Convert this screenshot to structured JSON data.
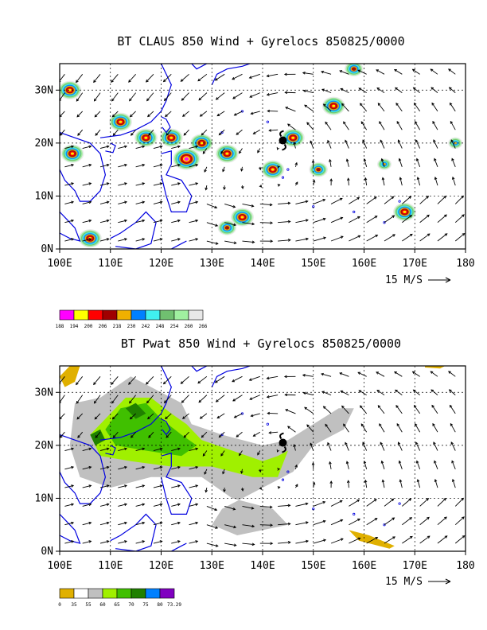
{
  "chart_data": [
    {
      "type": "heatmap",
      "title": "BT CLAUS 850 Wind + Gyrelocs 850825/0000",
      "x_ticks": [
        "100E",
        "110E",
        "120E",
        "130E",
        "140E",
        "150E",
        "160E",
        "170E",
        "180"
      ],
      "y_ticks": [
        "0N",
        "10N",
        "20N",
        "30N"
      ],
      "xlim": [
        100,
        180
      ],
      "ylim": [
        0,
        35
      ],
      "grid": true,
      "vector_reference": "15 M/S",
      "colorbar_labels": [
        "188",
        "194",
        "200",
        "206",
        "218",
        "230",
        "242",
        "248",
        "254",
        "260",
        "266"
      ],
      "colorbar_colors": [
        "#ff00ff",
        "#ffff00",
        "#ff0000",
        "#a00000",
        "#f0b000",
        "#0080ff",
        "#40f0f0",
        "#70c070",
        "#a0f0a0",
        "#e8e8e8"
      ],
      "features": [
        {
          "lon": 102,
          "lat": 30,
          "level": 3
        },
        {
          "lon": 102.5,
          "lat": 18,
          "level": 3
        },
        {
          "lon": 106,
          "lat": 2,
          "level": 3
        },
        {
          "lon": 112,
          "lat": 24,
          "level": 3
        },
        {
          "lon": 117,
          "lat": 21,
          "level": 3
        },
        {
          "lon": 122,
          "lat": 21,
          "level": 3
        },
        {
          "lon": 125,
          "lat": 17,
          "level": 4
        },
        {
          "lon": 128,
          "lat": 20,
          "level": 3
        },
        {
          "lon": 133,
          "lat": 18,
          "level": 3
        },
        {
          "lon": 146,
          "lat": 21,
          "level": 3
        },
        {
          "lon": 142,
          "lat": 15,
          "level": 3
        },
        {
          "lon": 154,
          "lat": 27,
          "level": 3
        },
        {
          "lon": 151,
          "lat": 15,
          "level": 2
        },
        {
          "lon": 168,
          "lat": 7,
          "level": 3
        },
        {
          "lon": 136,
          "lat": 6,
          "level": 3
        },
        {
          "lon": 133,
          "lat": 4,
          "level": 2
        },
        {
          "lon": 158,
          "lat": 34,
          "level": 2
        },
        {
          "lon": 178,
          "lat": 20,
          "level": 1
        },
        {
          "lon": 164,
          "lat": 16,
          "level": 1
        }
      ],
      "gyre_location": {
        "lon": 144,
        "lat": 20.5
      }
    },
    {
      "type": "heatmap",
      "title": "BT Pwat 850 Wind + Gyrelocs 850825/0000",
      "x_ticks": [
        "100E",
        "110E",
        "120E",
        "130E",
        "140E",
        "150E",
        "160E",
        "170E",
        "180"
      ],
      "y_ticks": [
        "0N",
        "10N",
        "20N",
        "30N"
      ],
      "xlim": [
        100,
        180
      ],
      "ylim": [
        0,
        35
      ],
      "grid": true,
      "vector_reference": "15 M/S",
      "colorbar_labels": [
        "0",
        "35",
        "55",
        "60",
        "65",
        "70",
        "75",
        "80",
        "73.29"
      ],
      "colorbar_colors": [
        "#e0b000",
        "#ffffff",
        "#c0c0c0",
        "#a0f000",
        "#40c000",
        "#208000",
        "#0080ff",
        "#8000c0"
      ],
      "gyre_location": {
        "lon": 144,
        "lat": 20.5
      }
    }
  ]
}
